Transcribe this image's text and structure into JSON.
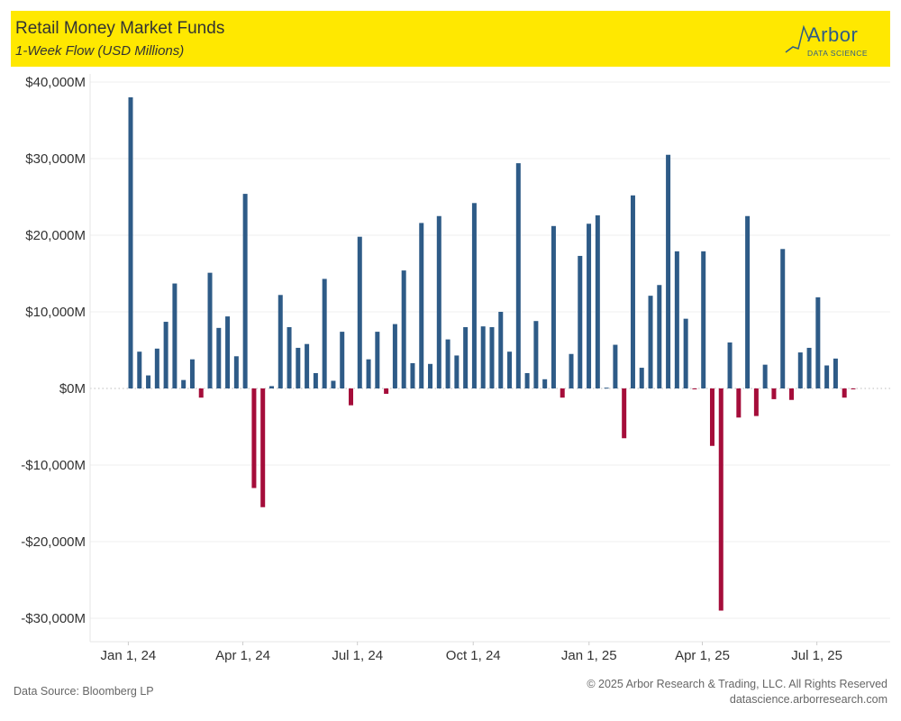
{
  "header": {
    "title": "Retail Money Market Funds",
    "subtitle": "1-Week Flow (USD Millions)",
    "logo_text": "Arbor",
    "logo_sub": "DATA SCIENCE"
  },
  "footer": {
    "source": "Data Source: Bloomberg LP",
    "copyright": "© 2025 Arbor Research & Trading, LLC. All Rights Reserved",
    "url": "datascience.arborresearch.com"
  },
  "chart_data": {
    "type": "bar",
    "title": "Retail Money Market Funds",
    "subtitle": "1-Week Flow (USD Millions)",
    "xlabel": "",
    "ylabel": "",
    "ylim": [
      -30000,
      40000
    ],
    "grid": true,
    "y_ticks": [
      {
        "value": 40000,
        "label": "$40,000M"
      },
      {
        "value": 30000,
        "label": "$30,000M"
      },
      {
        "value": 20000,
        "label": "$20,000M"
      },
      {
        "value": 10000,
        "label": "$10,000M"
      },
      {
        "value": 0,
        "label": "$0M"
      },
      {
        "value": -10000,
        "label": "-$10,000M"
      },
      {
        "value": -20000,
        "label": "-$20,000M"
      },
      {
        "value": -30000,
        "label": "-$30,000M"
      }
    ],
    "x_ticks": [
      {
        "date": "2024-01-01",
        "label": "Jan 1, 24"
      },
      {
        "date": "2024-04-01",
        "label": "Apr 1, 24"
      },
      {
        "date": "2024-07-01",
        "label": "Jul 1, 24"
      },
      {
        "date": "2024-10-01",
        "label": "Oct 1, 24"
      },
      {
        "date": "2025-01-01",
        "label": "Jan 1, 25"
      },
      {
        "date": "2025-04-01",
        "label": "Apr 1, 25"
      },
      {
        "date": "2025-07-01",
        "label": "Jul 1, 25"
      }
    ],
    "colors": {
      "positive": "#2e5b87",
      "negative": "#a50d3a"
    },
    "x": [
      "2024-01-05",
      "2024-01-12",
      "2024-01-19",
      "2024-01-26",
      "2024-02-02",
      "2024-02-09",
      "2024-02-16",
      "2024-02-23",
      "2024-03-01",
      "2024-03-08",
      "2024-03-15",
      "2024-03-22",
      "2024-03-29",
      "2024-04-05",
      "2024-04-12",
      "2024-04-19",
      "2024-04-26",
      "2024-05-03",
      "2024-05-10",
      "2024-05-17",
      "2024-05-24",
      "2024-05-31",
      "2024-06-07",
      "2024-06-14",
      "2024-06-21",
      "2024-06-28",
      "2024-07-05",
      "2024-07-12",
      "2024-07-19",
      "2024-07-26",
      "2024-08-02",
      "2024-08-09",
      "2024-08-16",
      "2024-08-23",
      "2024-08-30",
      "2024-09-06",
      "2024-09-13",
      "2024-09-20",
      "2024-09-27",
      "2024-10-04",
      "2024-10-11",
      "2024-10-18",
      "2024-10-25",
      "2024-11-01",
      "2024-11-08",
      "2024-11-15",
      "2024-11-22",
      "2024-11-29",
      "2024-12-06",
      "2024-12-13",
      "2024-12-20",
      "2024-12-27",
      "2025-01-03",
      "2025-01-10",
      "2025-01-17",
      "2025-01-24",
      "2025-01-31",
      "2025-02-07",
      "2025-02-14",
      "2025-02-21",
      "2025-02-28",
      "2025-03-07",
      "2025-03-14",
      "2025-03-21",
      "2025-03-28",
      "2025-04-04",
      "2025-04-11",
      "2025-04-18",
      "2025-04-25",
      "2025-05-02",
      "2025-05-09",
      "2025-05-16",
      "2025-05-23",
      "2025-05-30",
      "2025-06-06",
      "2025-06-13",
      "2025-06-20",
      "2025-06-27",
      "2025-07-04",
      "2025-07-11",
      "2025-07-18",
      "2025-07-25",
      "2025-08-01"
    ],
    "values": [
      38000,
      4800,
      1700,
      5200,
      8700,
      13700,
      1100,
      3800,
      -1200,
      15100,
      7900,
      9400,
      4200,
      25400,
      -13000,
      -15500,
      300,
      12200,
      8000,
      5300,
      5800,
      2000,
      14300,
      1000,
      7400,
      -2200,
      19800,
      3800,
      7400,
      -700,
      8400,
      15400,
      3300,
      21600,
      3200,
      22500,
      6400,
      4300,
      8000,
      24200,
      8100,
      8000,
      10000,
      4800,
      29400,
      2000,
      8800,
      1200,
      21200,
      -1200,
      4500,
      17300,
      21500,
      22600,
      100,
      5700,
      -6500,
      25200,
      2700,
      12100,
      13500,
      30500,
      17900,
      9100,
      -100,
      17900,
      -7500,
      -29000,
      6000,
      -3800,
      22500,
      -3600,
      3100,
      -1400,
      18200,
      -1500,
      4700,
      5300,
      11900,
      3000,
      3900,
      -1200,
      -100
    ]
  }
}
